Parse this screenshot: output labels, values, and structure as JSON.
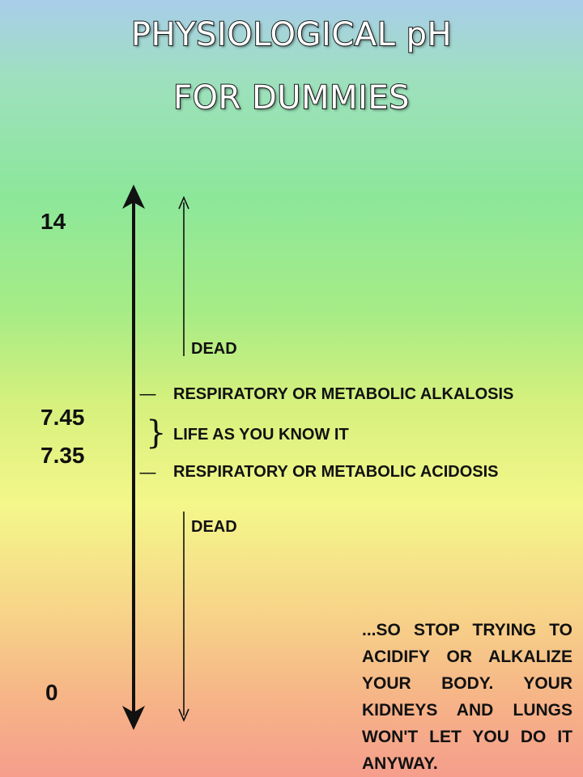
{
  "title": {
    "line1": "PHYSIOLOGICAL pH",
    "line2": "FOR DUMMIES"
  },
  "scale": {
    "tick_14": "14",
    "tick_745": "7.45",
    "tick_735": "7.35",
    "tick_0": "0"
  },
  "labels": {
    "dead_top": "DEAD",
    "alkalosis": "RESPIRATORY OR METABOLIC ALKALOSIS",
    "life": "LIFE AS YOU KNOW IT",
    "acidosis": "RESPIRATORY OR METABOLIC ACIDOSIS",
    "dead_bottom": "DEAD",
    "dash_glyph": "------",
    "brace_glyph": "}"
  },
  "note": {
    "line1": "...SO STOP TRYING TO",
    "line2": "ACIDIFY OR ALKALIZE",
    "line3": "YOUR BODY. YOUR",
    "line4": "KIDNEYS AND LUNGS",
    "line5": "WON'T LET YOU DO IT",
    "line6": "ANYWAY."
  }
}
